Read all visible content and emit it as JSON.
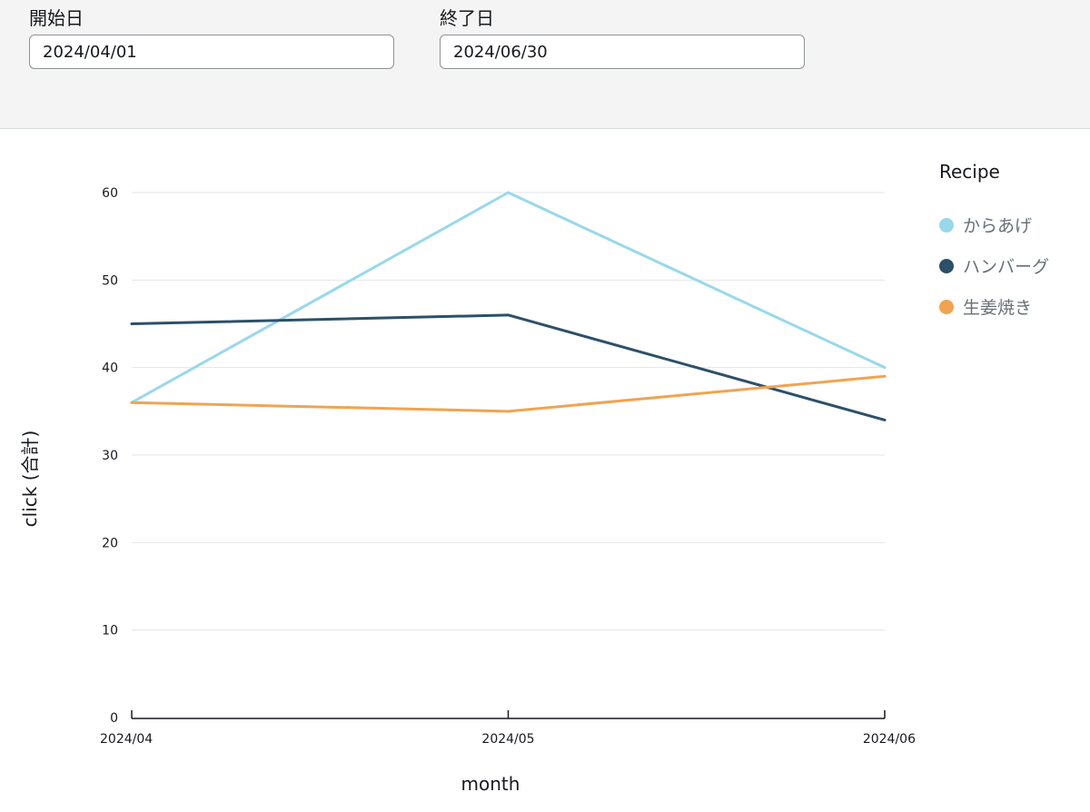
{
  "filters": {
    "start": {
      "label": "開始日",
      "value": "2024/04/01"
    },
    "end": {
      "label": "終了日",
      "value": "2024/06/30"
    }
  },
  "chart_data": {
    "type": "line",
    "categories": [
      "2024/04",
      "2024/05",
      "2024/06"
    ],
    "xlabel": "month",
    "ylabel": "click (合計)",
    "ylim": [
      0,
      60
    ],
    "yticks": [
      0,
      10,
      20,
      30,
      40,
      50,
      60
    ],
    "grid": true,
    "legend": {
      "title": "Recipe",
      "placement": "right"
    },
    "series": [
      {
        "name": "からあげ",
        "values": [
          36,
          60,
          40
        ],
        "color": "#98d8ec"
      },
      {
        "name": "ハンバーグ",
        "values": [
          45,
          46,
          34
        ],
        "color": "#2c5069"
      },
      {
        "name": "生姜焼き",
        "values": [
          36,
          35,
          39
        ],
        "color": "#f0a450"
      }
    ]
  }
}
